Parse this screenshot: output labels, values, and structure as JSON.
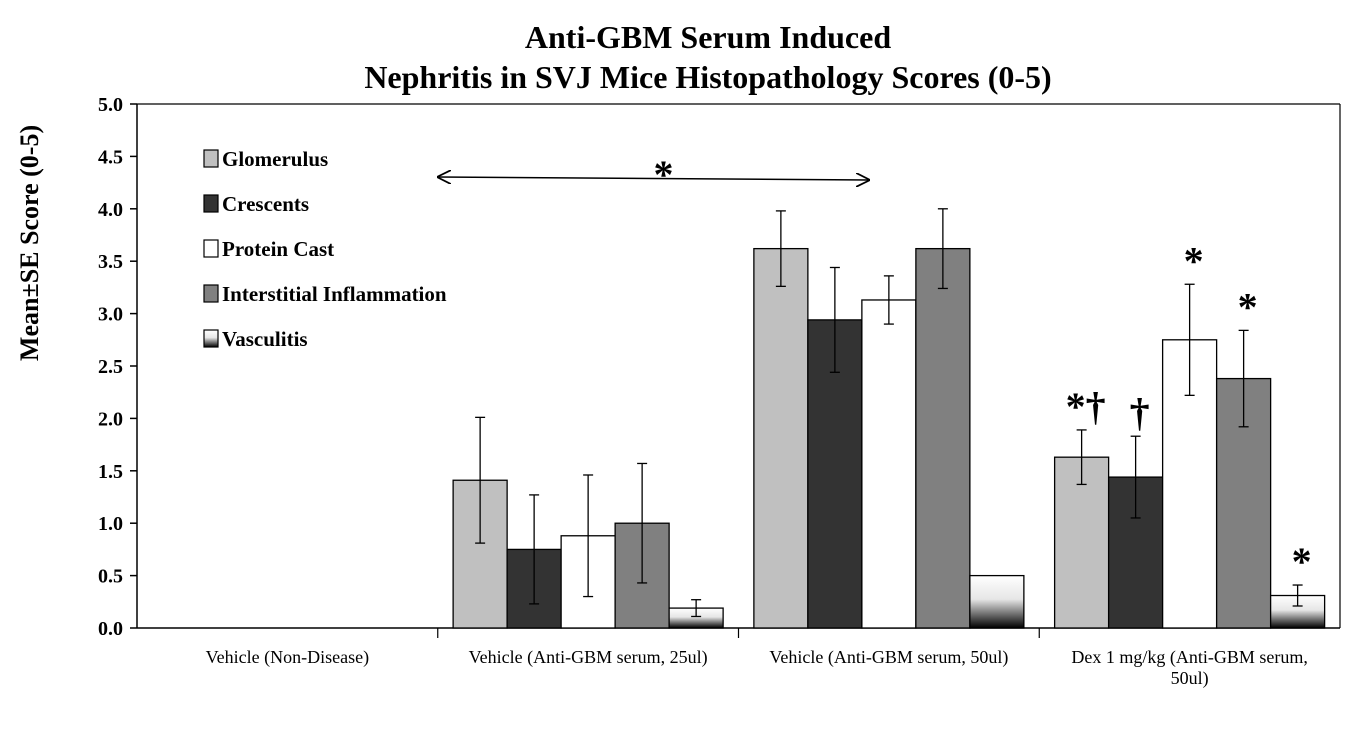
{
  "chart_data": {
    "type": "bar",
    "title": [
      "Anti-GBM Serum Induced",
      "Nephritis in SVJ Mice Histopathology Scores (0-5)"
    ],
    "ylabel": "Mean±SE Score (0-5)",
    "xlabel": "",
    "ylim": [
      0,
      5
    ],
    "yticks": [
      "0.0",
      "0.5",
      "1.0",
      "1.5",
      "2.0",
      "2.5",
      "3.0",
      "3.5",
      "4.0",
      "4.5",
      "5.0"
    ],
    "categories": [
      [
        "Vehicle (Non-Disease)"
      ],
      [
        "Vehicle (Anti-GBM serum, 25ul)"
      ],
      [
        "Vehicle (Anti-GBM serum, 50ul)"
      ],
      [
        "Dex 1 mg/kg (Anti-GBM serum,",
        "50ul)"
      ]
    ],
    "legend_position": "top-left",
    "grid": false,
    "series": [
      {
        "name": "Glomerulus",
        "color": "#c0c0c0",
        "values": [
          0,
          1.41,
          3.62,
          1.63
        ],
        "errors": [
          0,
          0.6,
          0.36,
          0.26
        ]
      },
      {
        "name": "Crescents",
        "color": "#333333",
        "values": [
          0,
          0.75,
          2.94,
          1.44
        ],
        "errors": [
          0,
          0.52,
          0.5,
          0.39
        ]
      },
      {
        "name": "Protein Cast",
        "color": "#ffffff",
        "values": [
          0,
          0.88,
          3.13,
          2.75
        ],
        "errors": [
          0,
          0.58,
          0.23,
          0.53
        ]
      },
      {
        "name": "Interstitial Inflammation",
        "color": "#808080",
        "values": [
          0,
          1.0,
          3.62,
          2.38
        ],
        "errors": [
          0,
          0.57,
          0.38,
          0.46
        ]
      },
      {
        "name": "Vasculitis",
        "color": "gradient",
        "values": [
          0,
          0.19,
          0.5,
          0.31
        ],
        "errors": [
          0,
          0.08,
          0,
          0.1
        ]
      }
    ],
    "annotations": {
      "group_star": "*",
      "dex_marks": [
        "*†",
        "†",
        "*",
        "*",
        "*"
      ]
    }
  }
}
